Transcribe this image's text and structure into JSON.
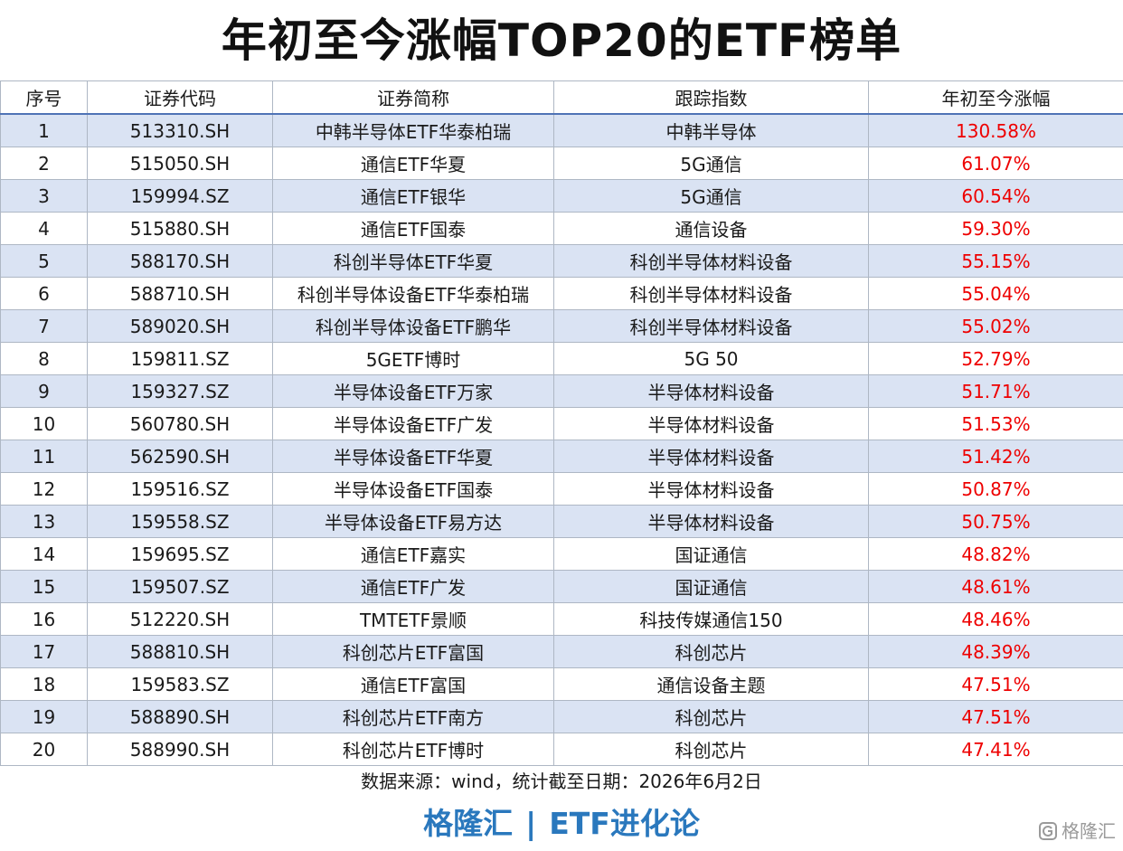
{
  "title": "年初至今涨幅TOP20的ETF榜单",
  "table": {
    "headers": [
      "序号",
      "证券代码",
      "证券简称",
      "跟踪指数",
      "年初至今涨幅"
    ],
    "rows": [
      [
        "1",
        "513310.SH",
        "中韩半导体ETF华泰柏瑞",
        "中韩半导体",
        "130.58%"
      ],
      [
        "2",
        "515050.SH",
        "通信ETF华夏",
        "5G通信",
        "61.07%"
      ],
      [
        "3",
        "159994.SZ",
        "通信ETF银华",
        "5G通信",
        "60.54%"
      ],
      [
        "4",
        "515880.SH",
        "通信ETF国泰",
        "通信设备",
        "59.30%"
      ],
      [
        "5",
        "588170.SH",
        "科创半导体ETF华夏",
        "科创半导体材料设备",
        "55.15%"
      ],
      [
        "6",
        "588710.SH",
        "科创半导体设备ETF华泰柏瑞",
        "科创半导体材料设备",
        "55.04%"
      ],
      [
        "7",
        "589020.SH",
        "科创半导体设备ETF鹏华",
        "科创半导体材料设备",
        "55.02%"
      ],
      [
        "8",
        "159811.SZ",
        "5GETF博时",
        "5G 50",
        "52.79%"
      ],
      [
        "9",
        "159327.SZ",
        "半导体设备ETF万家",
        "半导体材料设备",
        "51.71%"
      ],
      [
        "10",
        "560780.SH",
        "半导体设备ETF广发",
        "半导体材料设备",
        "51.53%"
      ],
      [
        "11",
        "562590.SH",
        "半导体设备ETF华夏",
        "半导体材料设备",
        "51.42%"
      ],
      [
        "12",
        "159516.SZ",
        "半导体设备ETF国泰",
        "半导体材料设备",
        "50.87%"
      ],
      [
        "13",
        "159558.SZ",
        "半导体设备ETF易方达",
        "半导体材料设备",
        "50.75%"
      ],
      [
        "14",
        "159695.SZ",
        "通信ETF嘉实",
        "国证通信",
        "48.82%"
      ],
      [
        "15",
        "159507.SZ",
        "通信ETF广发",
        "国证通信",
        "48.61%"
      ],
      [
        "16",
        "512220.SH",
        "TMTETF景顺",
        "科技传媒通信150",
        "48.46%"
      ],
      [
        "17",
        "588810.SH",
        "科创芯片ETF富国",
        "科创芯片",
        "48.39%"
      ],
      [
        "18",
        "159583.SZ",
        "通信ETF富国",
        "通信设备主题",
        "47.51%"
      ],
      [
        "19",
        "588890.SH",
        "科创芯片ETF南方",
        "科创芯片",
        "47.51%"
      ],
      [
        "20",
        "588990.SH",
        "科创芯片ETF博时",
        "科创芯片",
        "47.41%"
      ]
    ]
  },
  "source": "数据来源：wind，统计截至日期：2026年6月2日",
  "brand": {
    "left": "格隆汇",
    "separator": "|",
    "right": "ETF进化论"
  },
  "watermark": {
    "icon": "glh-logo-icon",
    "text": "格隆汇"
  },
  "colors": {
    "header_rule": "#4f73b6",
    "stripe": "#dae3f3",
    "gain": "#ee0000",
    "brand": "#2a78bd"
  }
}
